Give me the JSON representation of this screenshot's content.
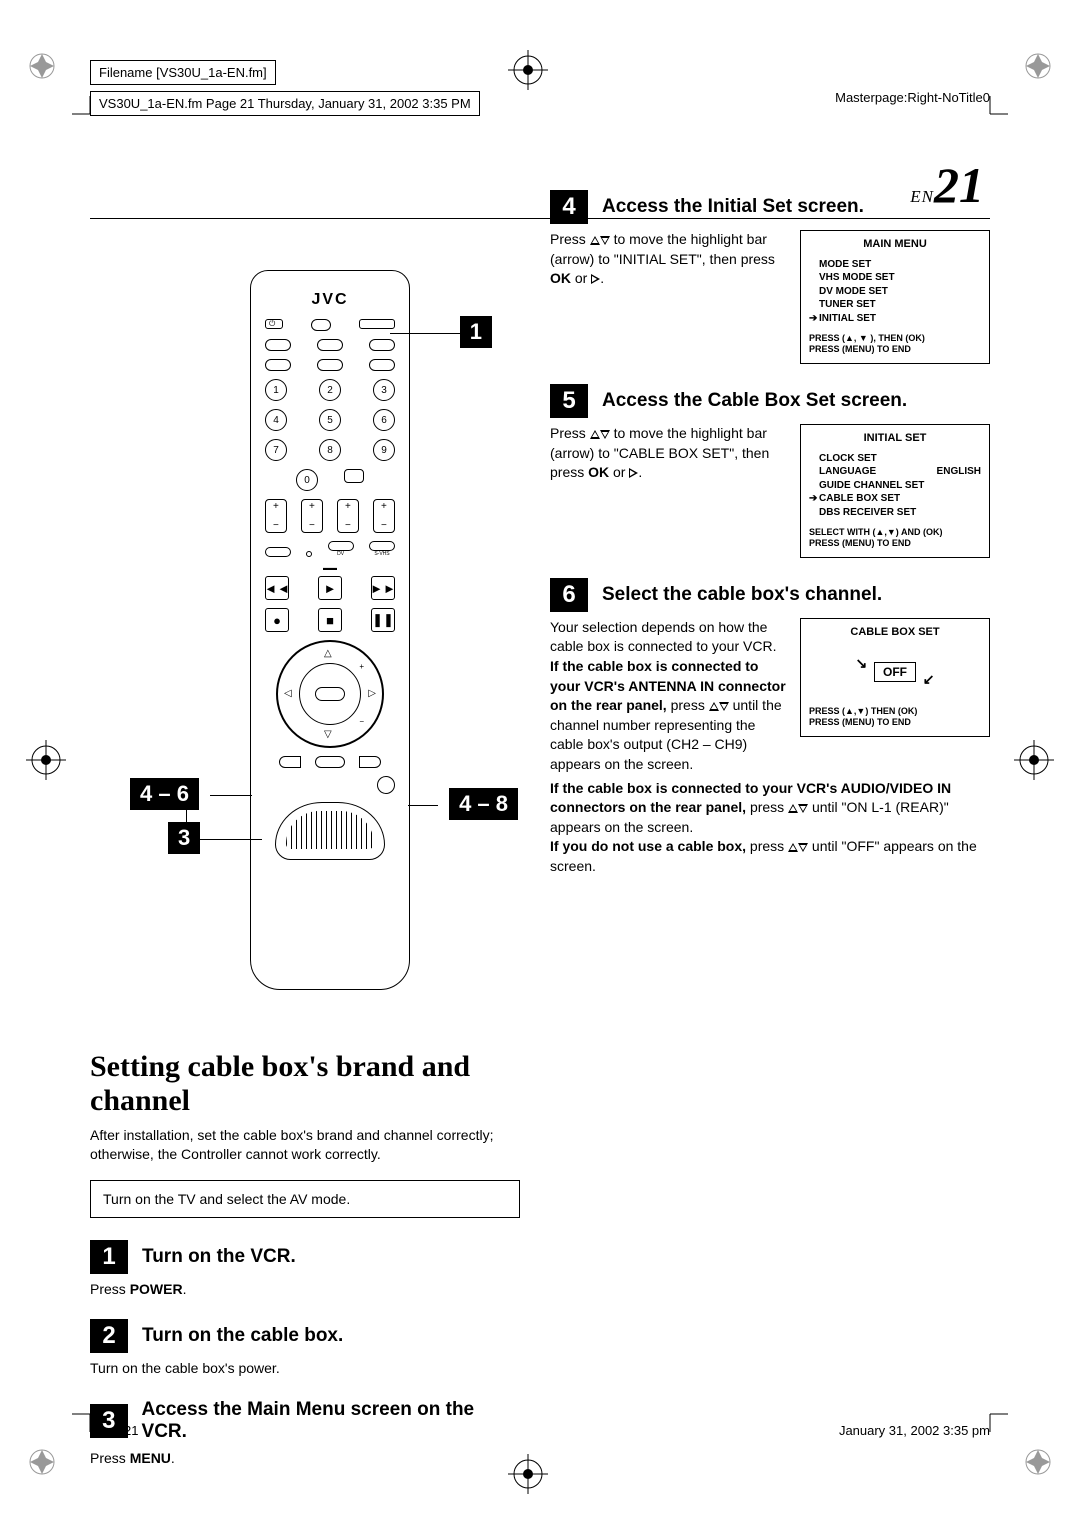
{
  "header": {
    "filename": "Filename [VS30U_1a-EN.fm]",
    "pageHeader": "VS30U_1a-EN.fm  Page 21  Thursday, January 31, 2002  3:35 PM",
    "masterpage": "Masterpage:Right-NoTitle0"
  },
  "pageNumber": {
    "prefix": "EN",
    "num": "21"
  },
  "remote": {
    "brand": "JVC"
  },
  "callouts": {
    "c1": "1",
    "c46left": "4 – 6",
    "c3": "3",
    "c48right": "4 – 8"
  },
  "leftSection": {
    "title": "Setting cable box's brand and channel",
    "intro": "After installation, set the cable box's brand and channel correctly; otherwise, the Controller cannot work correctly.",
    "preamble": "Turn on the TV and select the AV mode.",
    "steps": [
      {
        "n": "1",
        "title": "Turn on the VCR.",
        "bodyHtml": "Press <b>POWER</b>."
      },
      {
        "n": "2",
        "title": "Turn on the cable box.",
        "bodyHtml": "Turn on the cable box's power."
      },
      {
        "n": "3",
        "title": "Access the Main Menu screen on the VCR.",
        "bodyHtml": "Press <b>MENU</b>."
      }
    ]
  },
  "rightSteps": {
    "s4": {
      "n": "4",
      "title": "Access the Initial Set screen.",
      "textParts": [
        "Press ",
        " to move the highlight bar (arrow) to \"INITIAL SET\", then press ",
        "OK",
        " or ",
        "."
      ],
      "menu": {
        "title": "MAIN MENU",
        "items": [
          "MODE SET",
          "VHS MODE SET",
          "DV MODE SET",
          "TUNER SET"
        ],
        "selected": "INITIAL SET",
        "footer1": "PRESS (▲, ▼ ), THEN (OK)",
        "footer2": "PRESS (MENU)  TO END"
      }
    },
    "s5": {
      "n": "5",
      "title": "Access the Cable Box Set screen.",
      "textParts": [
        "Press ",
        " to move the highlight bar (arrow) to \"CABLE BOX SET\", then press ",
        "OK",
        " or ",
        "."
      ],
      "menu": {
        "title": "INITIAL SET",
        "items": [
          {
            "l": "CLOCK SET",
            "r": ""
          },
          {
            "l": "LANGUAGE",
            "r": "ENGLISH"
          },
          {
            "l": "GUIDE CHANNEL SET",
            "r": ""
          }
        ],
        "selected": "CABLE BOX SET",
        "after": [
          "DBS RECEIVER SET"
        ],
        "footer1": "SELECT WITH (▲,▼) AND (OK)",
        "footer2": "PRESS (MENU) TO END"
      }
    },
    "s6": {
      "n": "6",
      "title": "Select the cable box's channel.",
      "para1": "Your selection depends on how the cable box is connected to your VCR.",
      "bold1": "If the cable box is connected to your VCR's ANTENNA IN connector on the rear panel,",
      "para2a": " press ",
      "para2b": " until the channel number representing the cable box's output (CH2 – CH9) appears on the screen.",
      "bold2": "If the cable box is connected to your VCR's AUDIO/VIDEO IN connectors on the rear panel,",
      "para3a": " press ",
      "para3b": " until \"ON L-1 (REAR)\" appears on the screen.",
      "bold3": "If you do not use a cable box,",
      "para4a": " press ",
      "para4b": " until \"OFF\" appears on the screen.",
      "menu": {
        "title": "CABLE BOX SET",
        "off": "OFF",
        "footer1": "PRESS (▲,▼) THEN (OK)",
        "footer2": "PRESS (MENU) TO END"
      }
    }
  },
  "footer": {
    "left": "Page 21",
    "right": "January 31, 2002 3:35 pm"
  },
  "colors": {
    "black": "#000000",
    "white": "#ffffff",
    "registrationGray": "#999999"
  }
}
